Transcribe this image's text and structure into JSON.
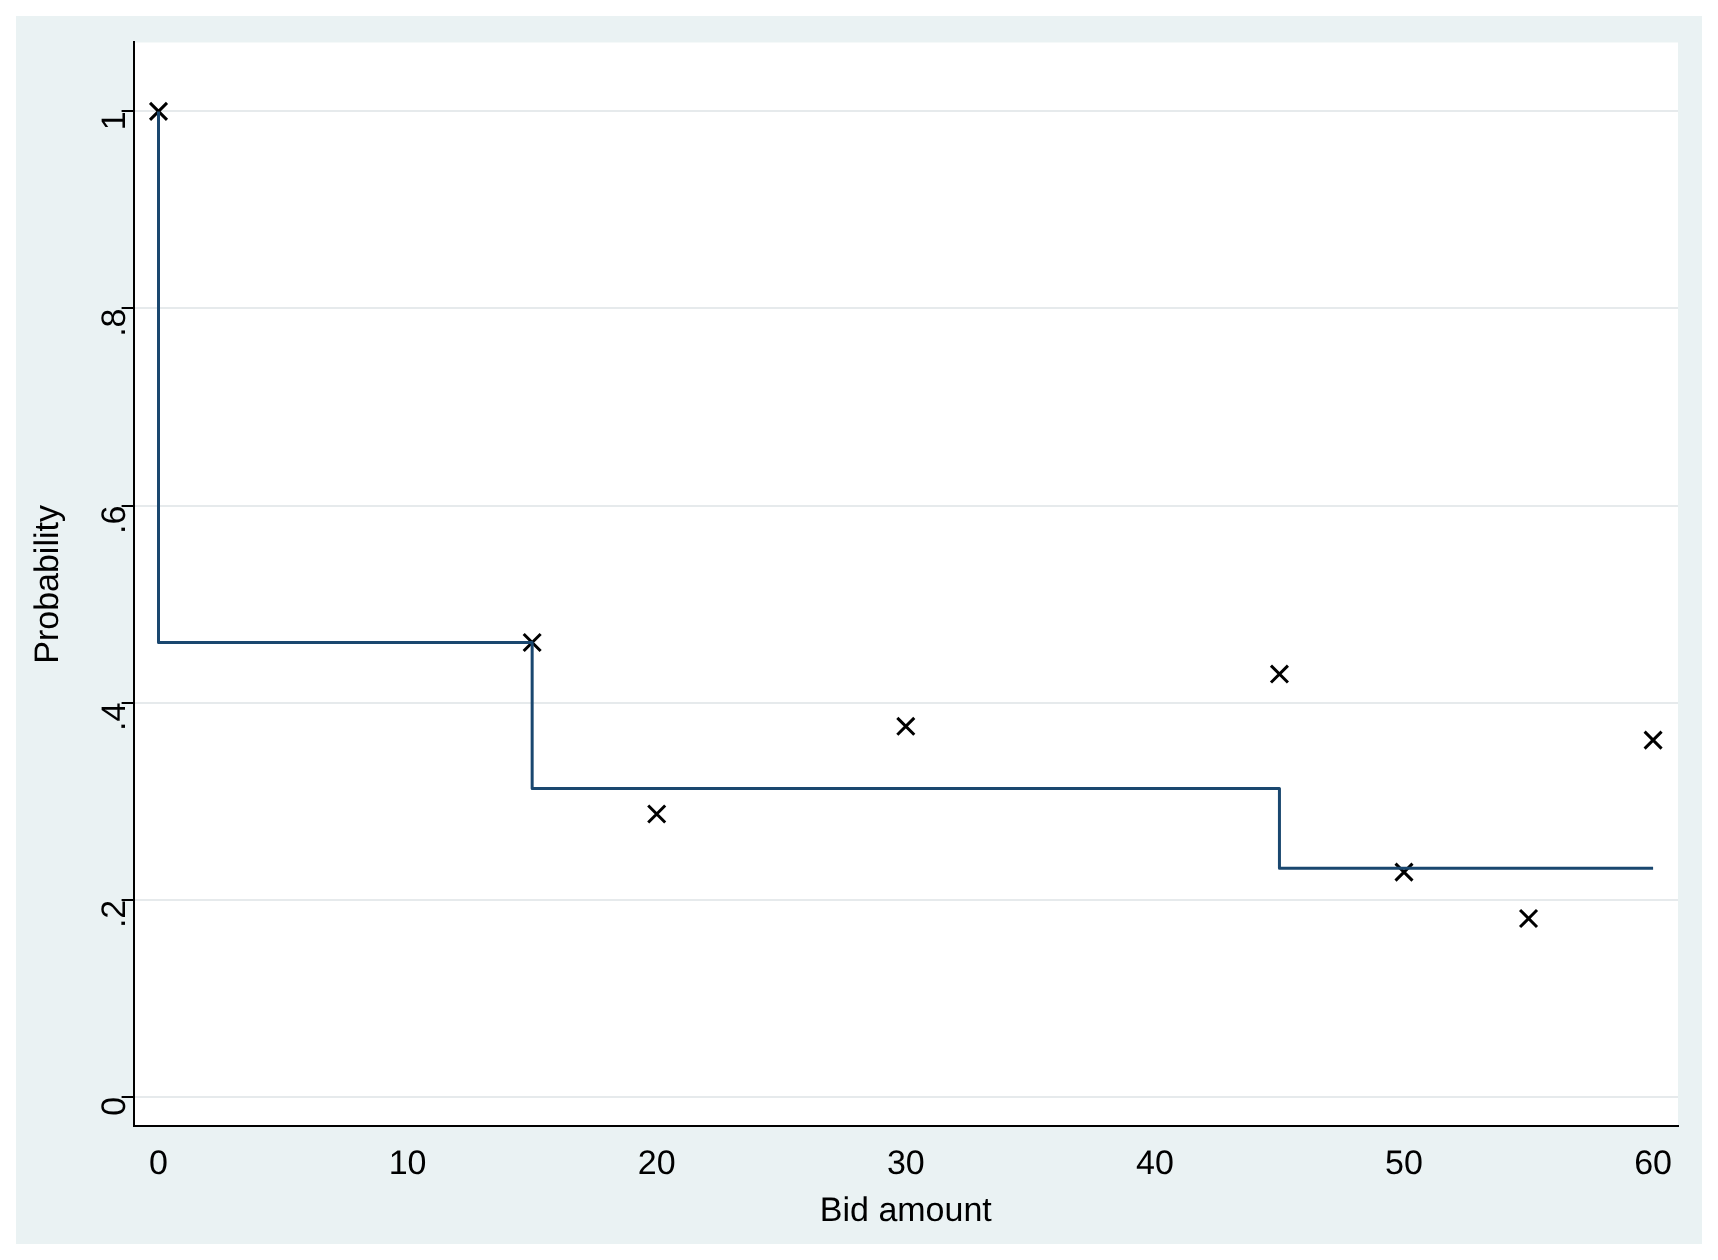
{
  "chart_data": {
    "type": "scatter",
    "xlabel": "Bid amount",
    "ylabel": "Probability",
    "xlim": [
      -1,
      61
    ],
    "ylim": [
      -0.03,
      1.07
    ],
    "xticks": [
      0,
      10,
      20,
      30,
      40,
      50,
      60
    ],
    "yticks": [
      {
        "value": 0,
        "label": "0"
      },
      {
        "value": 0.2,
        "label": ".2"
      },
      {
        "value": 0.4,
        "label": ".4"
      },
      {
        "value": 0.6,
        "label": ".6"
      },
      {
        "value": 0.8,
        "label": ".8"
      },
      {
        "value": 1,
        "label": "1"
      }
    ],
    "grid": "y",
    "legend": false,
    "series": [
      {
        "type": "step",
        "color": "#1a476f",
        "x": [
          0,
          15,
          45,
          60
        ],
        "values": [
          1,
          0.461,
          0.313,
          0.232
        ],
        "marker": "none",
        "line_style": "solid"
      },
      {
        "color": "#000000",
        "x": [
          0,
          15,
          20,
          30,
          45,
          50,
          55,
          60
        ],
        "values": [
          1,
          0.461,
          0.287,
          0.376,
          0.429,
          0.228,
          0.181,
          0.362
        ],
        "marker": "cross"
      }
    ]
  }
}
